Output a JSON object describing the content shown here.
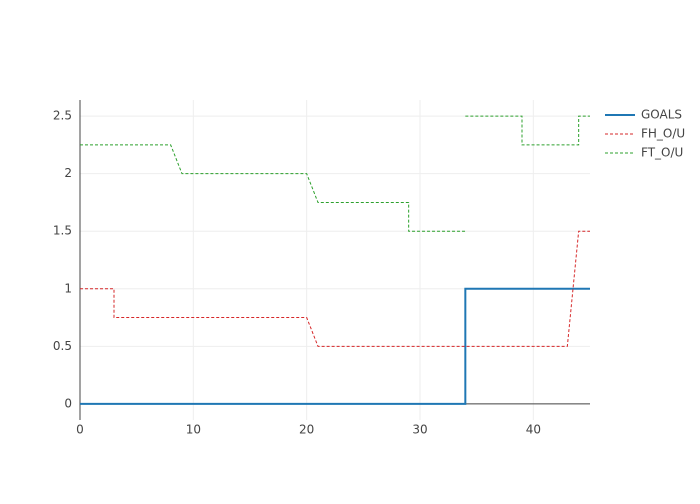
{
  "chart_data": {
    "type": "line",
    "series": [
      {
        "name": "GOALS",
        "color": "#1f77b4",
        "dash": "solid",
        "x": [
          0,
          34,
          34,
          45
        ],
        "values": [
          0,
          0,
          1,
          1
        ]
      },
      {
        "name": "FH_O/U",
        "color": "#d62728",
        "dash": "dot",
        "x": [
          0,
          3,
          3,
          20,
          21,
          43,
          44,
          45
        ],
        "values": [
          1,
          1,
          0.75,
          0.75,
          0.5,
          0.5,
          1.5,
          1.5
        ]
      },
      {
        "name": "FT_O/U",
        "color": "#2ca02c",
        "dash": "dot",
        "x": [
          0,
          8,
          9,
          20,
          21,
          29,
          29,
          34,
          34,
          34,
          39,
          39,
          44,
          44,
          45
        ],
        "values": [
          2.25,
          2.25,
          2,
          2,
          1.75,
          1.75,
          1.5,
          1.5,
          null,
          2.5,
          2.5,
          2.25,
          2.25,
          2.5,
          2.5
        ]
      }
    ],
    "xlim": [
      0,
      45
    ],
    "xticks": [
      0,
      10,
      20,
      30,
      40
    ],
    "ylim": [
      -0.14,
      2.64
    ],
    "yticks": [
      0,
      0.5,
      1,
      1.5,
      2,
      2.5
    ],
    "grid": true,
    "legend": "top-right"
  }
}
